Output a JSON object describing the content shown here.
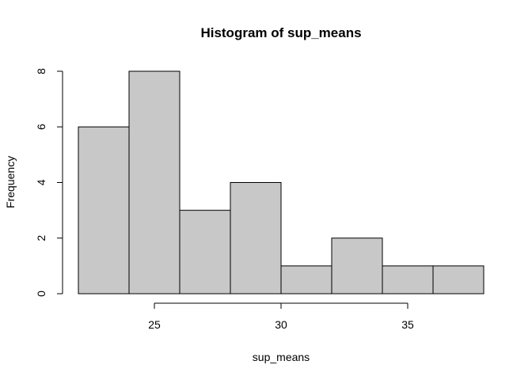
{
  "chart_data": {
    "type": "bar",
    "title": "Histogram of sup_means",
    "xlabel": "sup_means",
    "ylabel": "Frequency",
    "bins": [
      {
        "start": 22,
        "end": 24,
        "count": 6
      },
      {
        "start": 24,
        "end": 26,
        "count": 8
      },
      {
        "start": 26,
        "end": 28,
        "count": 3
      },
      {
        "start": 28,
        "end": 30,
        "count": 4
      },
      {
        "start": 30,
        "end": 32,
        "count": 1
      },
      {
        "start": 32,
        "end": 34,
        "count": 2
      },
      {
        "start": 34,
        "end": 36,
        "count": 1
      },
      {
        "start": 36,
        "end": 38,
        "count": 1
      }
    ],
    "xlim": [
      22,
      38
    ],
    "ylim": [
      0,
      8
    ],
    "x_ticks": [
      25,
      30,
      35
    ],
    "x_tick_labels": [
      "25",
      "30",
      "35"
    ],
    "y_ticks": [
      0,
      2,
      4,
      6,
      8
    ],
    "y_tick_labels": [
      "0",
      "2",
      "4",
      "6",
      "8"
    ],
    "bar_color": "#c8c8c8",
    "grid": false
  }
}
